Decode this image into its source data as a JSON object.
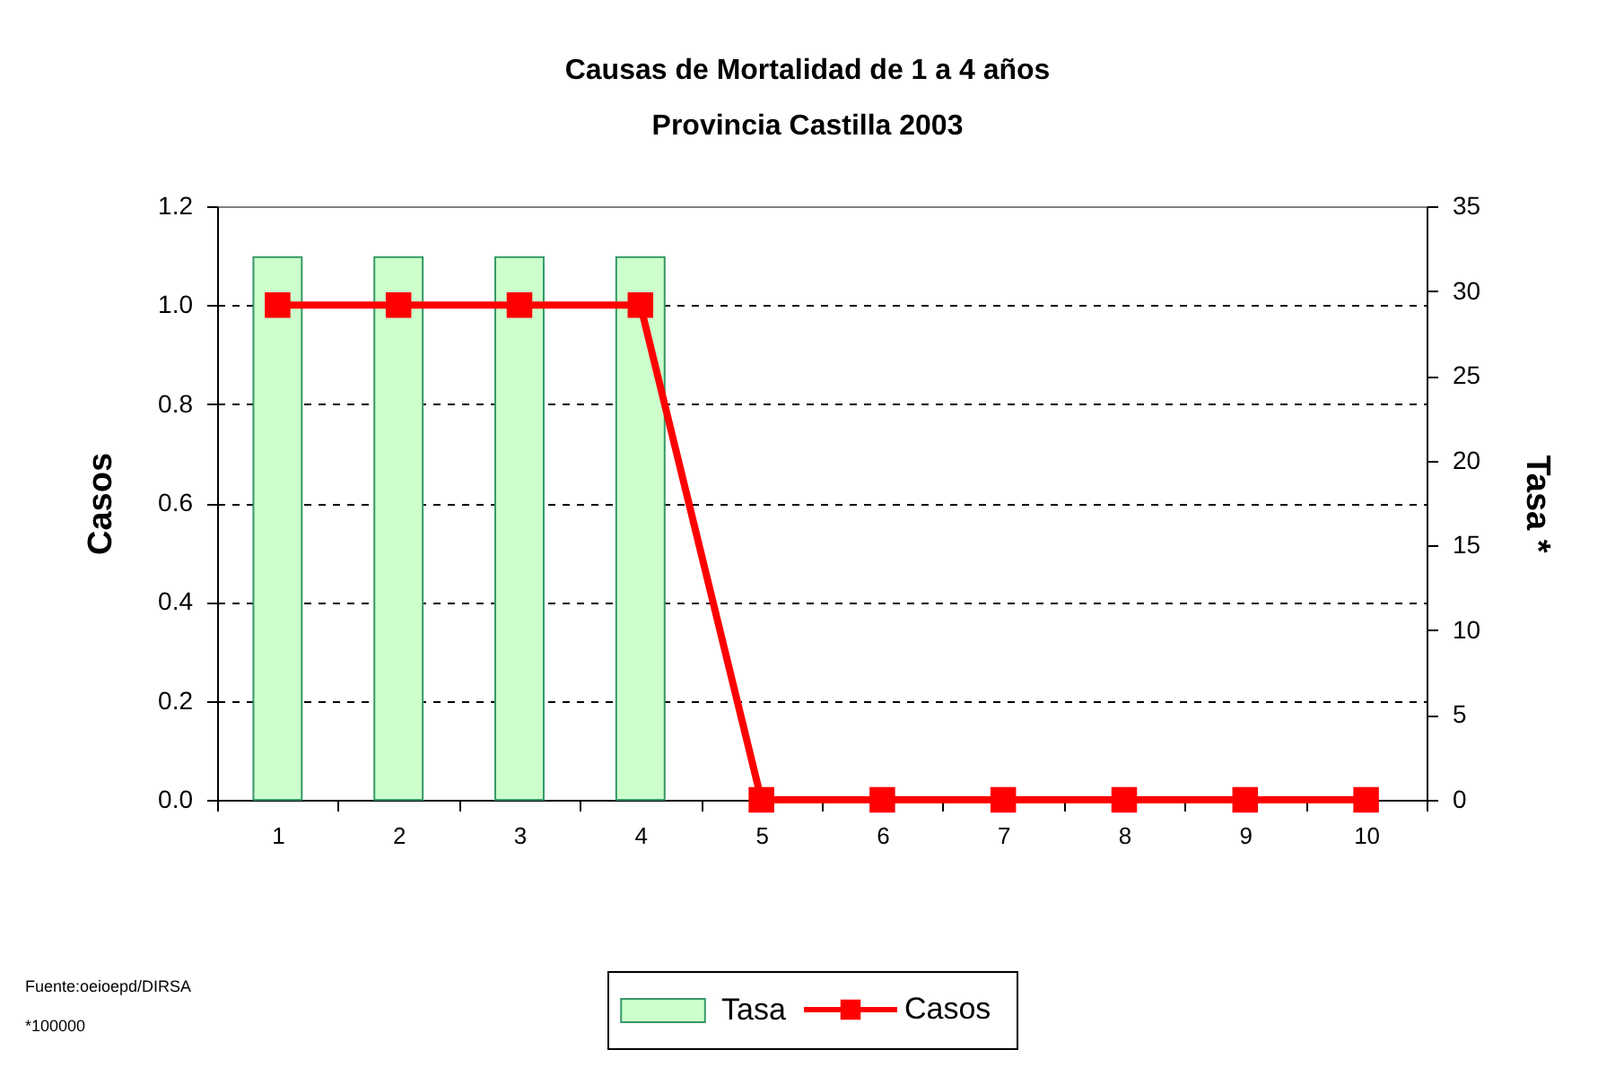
{
  "chart_data": {
    "type": "bar",
    "title": "Causas de Mortalidad de 1 a 4 años",
    "subtitle": "Provincia Castilla 2003",
    "ylabel": "Casos",
    "y2label": "Tasa *",
    "categories": [
      "1",
      "2",
      "3",
      "4",
      "5",
      "6",
      "7",
      "8",
      "9",
      "10"
    ],
    "series": [
      {
        "name": "Tasa",
        "axis": "y2",
        "color": "#ccffcc",
        "values": [
          32,
          32,
          32,
          32,
          null,
          null,
          null,
          null,
          null,
          null
        ]
      },
      {
        "name": "Casos",
        "type": "line",
        "color": "#ff0000",
        "values": [
          1,
          1,
          1,
          1,
          0,
          0,
          0,
          0,
          0,
          0
        ]
      }
    ],
    "ylim": [
      0,
      1.2
    ],
    "yticks": [
      {
        "value": 0,
        "label": "0.0"
      },
      0.2,
      0.4,
      0.6,
      0.8,
      {
        "value": 1,
        "label": "1.0"
      },
      1.2
    ],
    "y2lim": [
      0,
      35
    ],
    "y2ticks": [
      0,
      5,
      10,
      15,
      20,
      25,
      30,
      35
    ],
    "grid": "y",
    "legend": "bottom",
    "marker": "square",
    "line_style": "solid",
    "annotations": [
      "Fuente:oeioepd/DIRSA",
      "*100000"
    ]
  }
}
